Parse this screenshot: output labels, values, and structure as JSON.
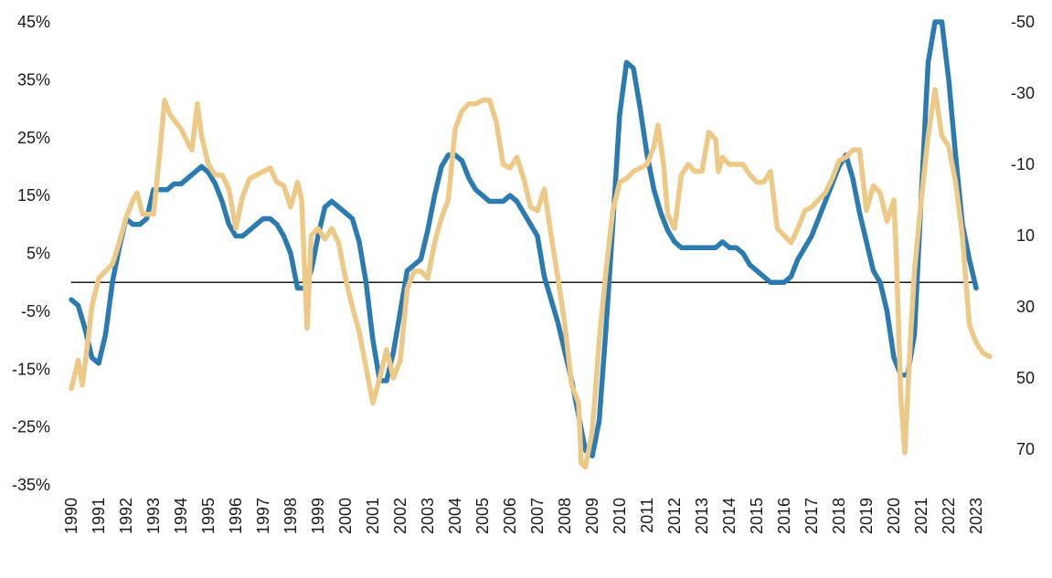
{
  "chart_data": {
    "type": "line",
    "xlim": [
      1990,
      2023
    ],
    "x_ticks": [
      "1990",
      "1991",
      "1992",
      "1993",
      "1994",
      "1995",
      "1996",
      "1997",
      "1998",
      "1999",
      "2000",
      "2001",
      "2002",
      "2003",
      "2004",
      "2005",
      "2006",
      "2007",
      "2008",
      "2009",
      "2010",
      "2011",
      "2012",
      "2013",
      "2014",
      "2015",
      "2016",
      "2017",
      "2018",
      "2019",
      "2020",
      "2021",
      "2022",
      "2023"
    ],
    "left_axis": {
      "ylim": [
        -35,
        45
      ],
      "ticks": [
        "45%",
        "35%",
        "25%",
        "15%",
        "5%",
        "-5%",
        "-15%",
        "-25%",
        "-35%"
      ],
      "tick_values": [
        45,
        35,
        25,
        15,
        5,
        -5,
        -15,
        -25,
        -35
      ]
    },
    "right_axis": {
      "ylim": [
        80,
        -50
      ],
      "inverted": true,
      "ticks": [
        "-50",
        "-30",
        "-10",
        "10",
        "30",
        "50",
        "70"
      ],
      "tick_values": [
        -50,
        -30,
        -10,
        10,
        30,
        50,
        70
      ]
    },
    "reference_line": {
      "axis": "left",
      "value": 0,
      "color": "#1a1a1a"
    },
    "series": [
      {
        "axis": "left",
        "color": "#2b7bb0",
        "points": [
          [
            1990.0,
            -3
          ],
          [
            1990.25,
            -4
          ],
          [
            1990.5,
            -8
          ],
          [
            1990.75,
            -13
          ],
          [
            1991.0,
            -14
          ],
          [
            1991.25,
            -9
          ],
          [
            1991.5,
            0
          ],
          [
            1991.75,
            6
          ],
          [
            1992.0,
            11
          ],
          [
            1992.25,
            10
          ],
          [
            1992.5,
            10
          ],
          [
            1992.75,
            11
          ],
          [
            1993.0,
            16
          ],
          [
            1993.25,
            16
          ],
          [
            1993.5,
            16
          ],
          [
            1993.75,
            17
          ],
          [
            1994.0,
            17
          ],
          [
            1994.25,
            18
          ],
          [
            1994.5,
            19
          ],
          [
            1994.75,
            20
          ],
          [
            1995.0,
            19
          ],
          [
            1995.25,
            17
          ],
          [
            1995.5,
            14
          ],
          [
            1995.75,
            10
          ],
          [
            1996.0,
            8
          ],
          [
            1996.25,
            8
          ],
          [
            1996.5,
            9
          ],
          [
            1996.75,
            10
          ],
          [
            1997.0,
            11
          ],
          [
            1997.25,
            11
          ],
          [
            1997.5,
            10
          ],
          [
            1997.75,
            8
          ],
          [
            1998.0,
            5
          ],
          [
            1998.25,
            -1
          ],
          [
            1998.5,
            -1
          ],
          [
            1998.75,
            2
          ],
          [
            1999.0,
            8
          ],
          [
            1999.25,
            13
          ],
          [
            1999.5,
            14
          ],
          [
            1999.75,
            13
          ],
          [
            2000.0,
            12
          ],
          [
            2000.25,
            11
          ],
          [
            2000.5,
            7
          ],
          [
            2000.75,
            0
          ],
          [
            2001.0,
            -10
          ],
          [
            2001.25,
            -17
          ],
          [
            2001.5,
            -17
          ],
          [
            2001.75,
            -12
          ],
          [
            2002.0,
            -5
          ],
          [
            2002.25,
            2
          ],
          [
            2002.5,
            3
          ],
          [
            2002.75,
            4
          ],
          [
            2003.0,
            9
          ],
          [
            2003.25,
            15
          ],
          [
            2003.5,
            20
          ],
          [
            2003.75,
            22
          ],
          [
            2004.0,
            22
          ],
          [
            2004.25,
            21
          ],
          [
            2004.5,
            18
          ],
          [
            2004.75,
            16
          ],
          [
            2005.0,
            15
          ],
          [
            2005.25,
            14
          ],
          [
            2005.5,
            14
          ],
          [
            2005.75,
            14
          ],
          [
            2006.0,
            15
          ],
          [
            2006.25,
            14
          ],
          [
            2006.5,
            12
          ],
          [
            2006.75,
            10
          ],
          [
            2007.0,
            8
          ],
          [
            2007.25,
            1
          ],
          [
            2007.5,
            -3
          ],
          [
            2007.75,
            -7
          ],
          [
            2008.0,
            -12
          ],
          [
            2008.25,
            -17
          ],
          [
            2008.5,
            -23
          ],
          [
            2008.75,
            -29
          ],
          [
            2009.0,
            -30
          ],
          [
            2009.25,
            -24
          ],
          [
            2009.5,
            -8
          ],
          [
            2009.75,
            10
          ],
          [
            2010.0,
            29
          ],
          [
            2010.25,
            38
          ],
          [
            2010.5,
            37
          ],
          [
            2010.75,
            30
          ],
          [
            2011.0,
            22
          ],
          [
            2011.25,
            16
          ],
          [
            2011.5,
            12
          ],
          [
            2011.75,
            9
          ],
          [
            2012.0,
            7
          ],
          [
            2012.25,
            6
          ],
          [
            2012.5,
            6
          ],
          [
            2012.75,
            6
          ],
          [
            2013.0,
            6
          ],
          [
            2013.25,
            6
          ],
          [
            2013.5,
            6
          ],
          [
            2013.75,
            7
          ],
          [
            2014.0,
            6
          ],
          [
            2014.25,
            6
          ],
          [
            2014.5,
            5
          ],
          [
            2014.75,
            3
          ],
          [
            2015.0,
            2
          ],
          [
            2015.25,
            1
          ],
          [
            2015.5,
            0
          ],
          [
            2015.75,
            0
          ],
          [
            2016.0,
            0
          ],
          [
            2016.25,
            1
          ],
          [
            2016.5,
            4
          ],
          [
            2016.75,
            6
          ],
          [
            2017.0,
            8
          ],
          [
            2017.25,
            11
          ],
          [
            2017.5,
            14
          ],
          [
            2017.75,
            17
          ],
          [
            2018.0,
            20
          ],
          [
            2018.25,
            22
          ],
          [
            2018.5,
            18
          ],
          [
            2018.75,
            12
          ],
          [
            2019.0,
            7
          ],
          [
            2019.25,
            2
          ],
          [
            2019.5,
            0
          ],
          [
            2019.75,
            -5
          ],
          [
            2020.0,
            -13
          ],
          [
            2020.25,
            -16
          ],
          [
            2020.5,
            -16
          ],
          [
            2020.75,
            -9
          ],
          [
            2021.0,
            15
          ],
          [
            2021.25,
            38
          ],
          [
            2021.5,
            45
          ],
          [
            2021.75,
            45
          ],
          [
            2022.0,
            35
          ],
          [
            2022.25,
            22
          ],
          [
            2022.5,
            10
          ],
          [
            2022.75,
            4
          ],
          [
            2023.0,
            -1
          ]
        ]
      },
      {
        "axis": "right",
        "color": "#ecc987",
        "points": [
          [
            1990.0,
            53
          ],
          [
            1990.1,
            50
          ],
          [
            1990.25,
            45
          ],
          [
            1990.4,
            52
          ],
          [
            1990.6,
            40
          ],
          [
            1990.75,
            30
          ],
          [
            1991.0,
            22
          ],
          [
            1991.25,
            20
          ],
          [
            1991.5,
            18
          ],
          [
            1991.75,
            12
          ],
          [
            1992.0,
            5
          ],
          [
            1992.25,
            0
          ],
          [
            1992.4,
            -2
          ],
          [
            1992.6,
            4
          ],
          [
            1992.75,
            4
          ],
          [
            1993.0,
            4
          ],
          [
            1993.25,
            -15
          ],
          [
            1993.4,
            -28
          ],
          [
            1993.6,
            -24
          ],
          [
            1993.8,
            -22
          ],
          [
            1994.0,
            -20
          ],
          [
            1994.25,
            -16
          ],
          [
            1994.4,
            -14
          ],
          [
            1994.6,
            -27
          ],
          [
            1994.75,
            -18
          ],
          [
            1995.0,
            -10
          ],
          [
            1995.25,
            -7
          ],
          [
            1995.5,
            -7
          ],
          [
            1995.75,
            -3
          ],
          [
            1996.0,
            8
          ],
          [
            1996.25,
            -1
          ],
          [
            1996.5,
            -6
          ],
          [
            1996.75,
            -7
          ],
          [
            1997.0,
            -8
          ],
          [
            1997.25,
            -9
          ],
          [
            1997.5,
            -5
          ],
          [
            1997.75,
            -4
          ],
          [
            1998.0,
            2
          ],
          [
            1998.25,
            -5
          ],
          [
            1998.4,
            0
          ],
          [
            1998.6,
            36
          ],
          [
            1998.75,
            10
          ],
          [
            1999.0,
            8
          ],
          [
            1999.25,
            11
          ],
          [
            1999.5,
            8
          ],
          [
            1999.75,
            12
          ],
          [
            2000.0,
            22
          ],
          [
            2000.25,
            30
          ],
          [
            2000.5,
            37
          ],
          [
            2000.75,
            47
          ],
          [
            2001.0,
            57
          ],
          [
            2001.25,
            50
          ],
          [
            2001.5,
            42
          ],
          [
            2001.75,
            50
          ],
          [
            2002.0,
            45
          ],
          [
            2002.25,
            25
          ],
          [
            2002.5,
            20
          ],
          [
            2002.75,
            20
          ],
          [
            2003.0,
            22
          ],
          [
            2003.25,
            12
          ],
          [
            2003.5,
            5
          ],
          [
            2003.75,
            0
          ],
          [
            2004.0,
            -20
          ],
          [
            2004.25,
            -25
          ],
          [
            2004.5,
            -27
          ],
          [
            2004.75,
            -27
          ],
          [
            2005.0,
            -28
          ],
          [
            2005.25,
            -28
          ],
          [
            2005.5,
            -22
          ],
          [
            2005.75,
            -10
          ],
          [
            2006.0,
            -9
          ],
          [
            2006.25,
            -12
          ],
          [
            2006.5,
            -6
          ],
          [
            2006.75,
            2
          ],
          [
            2007.0,
            3
          ],
          [
            2007.25,
            -3
          ],
          [
            2007.5,
            10
          ],
          [
            2007.75,
            22
          ],
          [
            2008.0,
            35
          ],
          [
            2008.25,
            52
          ],
          [
            2008.5,
            57
          ],
          [
            2008.6,
            74
          ],
          [
            2008.75,
            75
          ],
          [
            2009.0,
            65
          ],
          [
            2009.25,
            40
          ],
          [
            2009.5,
            20
          ],
          [
            2009.75,
            3
          ],
          [
            2010.0,
            -5
          ],
          [
            2010.25,
            -6
          ],
          [
            2010.5,
            -8
          ],
          [
            2010.75,
            -9
          ],
          [
            2011.0,
            -10
          ],
          [
            2011.25,
            -15
          ],
          [
            2011.4,
            -21
          ],
          [
            2011.6,
            -10
          ],
          [
            2011.75,
            4
          ],
          [
            2012.0,
            8
          ],
          [
            2012.25,
            -7
          ],
          [
            2012.5,
            -10
          ],
          [
            2012.75,
            -8
          ],
          [
            2013.0,
            -8
          ],
          [
            2013.25,
            -19
          ],
          [
            2013.5,
            -17
          ],
          [
            2013.6,
            -8
          ],
          [
            2013.75,
            -12
          ],
          [
            2014.0,
            -10
          ],
          [
            2014.25,
            -10
          ],
          [
            2014.5,
            -10
          ],
          [
            2014.75,
            -7
          ],
          [
            2015.0,
            -5
          ],
          [
            2015.25,
            -5
          ],
          [
            2015.5,
            -8
          ],
          [
            2015.75,
            8
          ],
          [
            2016.0,
            10
          ],
          [
            2016.25,
            12
          ],
          [
            2016.5,
            8
          ],
          [
            2016.75,
            3
          ],
          [
            2017.0,
            2
          ],
          [
            2017.25,
            0
          ],
          [
            2017.5,
            -2
          ],
          [
            2017.75,
            -6
          ],
          [
            2018.0,
            -11
          ],
          [
            2018.25,
            -12
          ],
          [
            2018.5,
            -14
          ],
          [
            2018.75,
            -14
          ],
          [
            2019.0,
            3
          ],
          [
            2019.25,
            -4
          ],
          [
            2019.5,
            -2
          ],
          [
            2019.75,
            6
          ],
          [
            2020.0,
            0
          ],
          [
            2020.1,
            18
          ],
          [
            2020.25,
            55
          ],
          [
            2020.4,
            71
          ],
          [
            2020.6,
            40
          ],
          [
            2020.75,
            20
          ],
          [
            2021.0,
            0
          ],
          [
            2021.25,
            -18
          ],
          [
            2021.5,
            -31
          ],
          [
            2021.75,
            -18
          ],
          [
            2022.0,
            -15
          ],
          [
            2022.25,
            -5
          ],
          [
            2022.5,
            10
          ],
          [
            2022.75,
            35
          ],
          [
            2023.0,
            40
          ],
          [
            2023.25,
            43
          ],
          [
            2023.5,
            44
          ]
        ]
      }
    ]
  }
}
